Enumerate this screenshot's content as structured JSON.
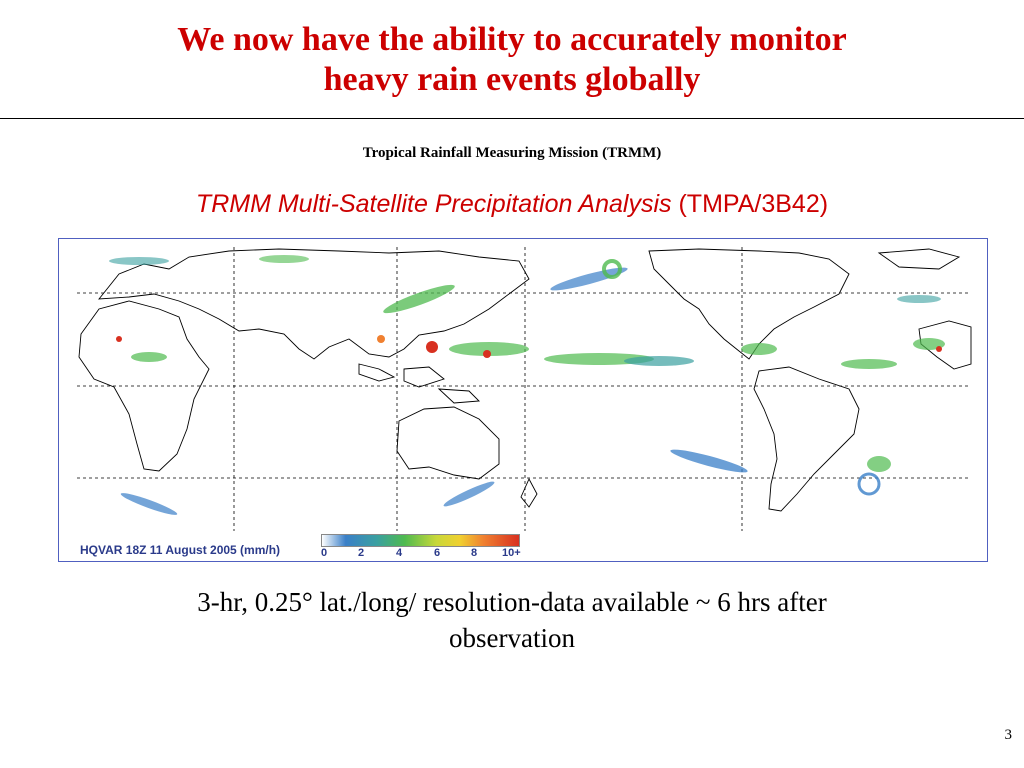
{
  "slide": {
    "title_lines": [
      "We now have the ability to accurately monitor",
      "heavy rain events globally"
    ],
    "subtitle": "Tropical Rainfall Measuring Mission (TRMM)",
    "product_name_italic": "TRMM Multi-Satellite Precipitation Analysis",
    "product_code": "(TMPA/3B42)",
    "note_lines": [
      "3-hr, 0.25° lat./long/ resolution-data available ~ 6 hrs after",
      "observation"
    ],
    "page_number": "3"
  },
  "map": {
    "caption": "HQVAR  18Z 11 August 2005 (mm/h)",
    "colorbar_ticks": [
      "0",
      "2",
      "4",
      "6",
      "8",
      "10+"
    ],
    "colors": {
      "frame": "#5060c0",
      "land_outline": "#000000",
      "grid": "#000000",
      "rain_low": "#3a7fc8",
      "rain_mid": "#4fba4f",
      "rain_high": "#d83020"
    }
  }
}
